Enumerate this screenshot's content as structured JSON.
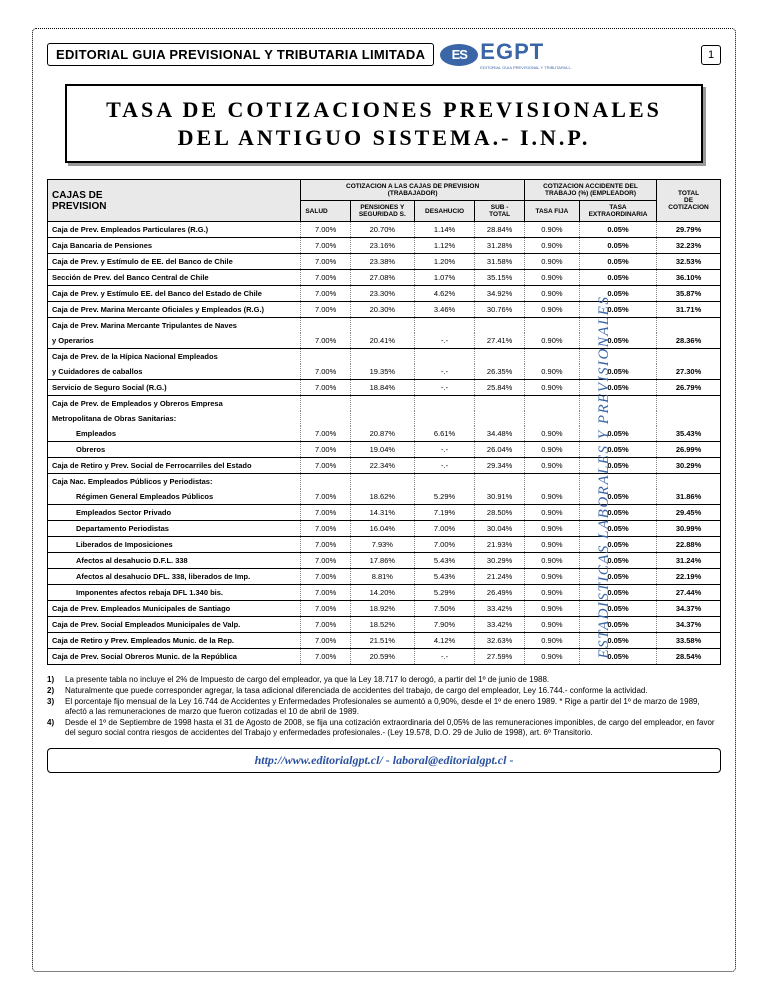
{
  "page_number": "1",
  "header_label": "EDITORIAL GUIA PREVISIONAL Y TRIBUTARIA LIMITADA",
  "logo_initials": "ES",
  "logo_text": "EGPT",
  "logo_sub": "EDITORIAL GUIA PREVISIONAL Y TRIBUTARIA L.",
  "title_line1": "TASA  DE  COTIZACIONES  PREVISIONALES",
  "title_line2": "DEL  ANTIGUO  SISTEMA.-  I.N.P.",
  "side_label": "ESTADISTICAS  LABORALES  Y  PREVISIONALES",
  "cols": {
    "c0a": "CAJAS  DE",
    "c0b": "PREVISION",
    "g1": "COTIZACION A LAS CAJAS DE PREVISION",
    "g1s": "(TRABAJADOR)",
    "g2": "COTIZACION ACCIDENTE DEL",
    "g2s": "TRABAJO (%) (EMPLEADOR)",
    "g3a": "TOTAL",
    "g3b": "DE",
    "g3c": "COTIZACION",
    "salud": "SALUD",
    "pens1": "PENSIONES Y",
    "pens2": "SEGURIDAD S.",
    "des": "DESAHUCIO",
    "sub1": "SUB -",
    "sub2": "TOTAL",
    "fija": "TASA FIJA",
    "ext1": "TASA",
    "ext2": "EXTRAORDINARIA"
  },
  "rows": [
    {
      "label": "Caja de Prev. Empleados Particulares (R.G.)",
      "salud": "7.00%",
      "pens": "20.70%",
      "des": "1.14%",
      "sub": "28.84%",
      "fija": "0.90%",
      "ext": "0.05%",
      "tot": "29.79%"
    },
    {
      "label": "Caja Bancaria de Pensiones",
      "salud": "7.00%",
      "pens": "23.16%",
      "des": "1.12%",
      "sub": "31.28%",
      "fija": "0.90%",
      "ext": "0.05%",
      "tot": "32.23%"
    },
    {
      "label": "Caja de Prev. y Estímulo de EE. del Banco de Chile",
      "salud": "7.00%",
      "pens": "23.38%",
      "des": "1.20%",
      "sub": "31.58%",
      "fija": "0.90%",
      "ext": "0.05%",
      "tot": "32.53%"
    },
    {
      "label": "Sección de Prev. del Banco Central de Chile",
      "salud": "7.00%",
      "pens": "27.08%",
      "des": "1.07%",
      "sub": "35.15%",
      "fija": "0.90%",
      "ext": "0.05%",
      "tot": "36.10%"
    },
    {
      "label": "Caja de Prev. y Estímulo EE. del Banco del Estado de Chile",
      "salud": "7.00%",
      "pens": "23.30%",
      "des": "4.62%",
      "sub": "34.92%",
      "fija": "0.90%",
      "ext": "0.05%",
      "tot": "35.87%"
    },
    {
      "label": "Caja de Prev. Marina Mercante Oficiales y Empleados (R.G.)",
      "salud": "7.00%",
      "pens": "20.30%",
      "des": "3.46%",
      "sub": "30.76%",
      "fija": "0.90%",
      "ext": "0.05%",
      "tot": "31.71%"
    },
    {
      "section": "Caja de Prev. Marina Mercante Tripulantes de Naves"
    },
    {
      "label": "y Operarios",
      "salud": "7.00%",
      "pens": "20.41%",
      "des": "-.-",
      "sub": "27.41%",
      "fija": "0.90%",
      "ext": "0.05%",
      "tot": "28.36%"
    },
    {
      "section": "Caja de Prev. de la Hípica Nacional Empleados"
    },
    {
      "label": "y Cuidadores de caballos",
      "salud": "7.00%",
      "pens": "19.35%",
      "des": "-.-",
      "sub": "26.35%",
      "fija": "0.90%",
      "ext": "0.05%",
      "tot": "27.30%"
    },
    {
      "label": "Servicio de Seguro Social (R.G.)",
      "salud": "7.00%",
      "pens": "18.84%",
      "des": "-.-",
      "sub": "25.84%",
      "fija": "0.90%",
      "ext": "0.05%",
      "tot": "26.79%"
    },
    {
      "section": "Caja de Prev. de Empleados y Obreros Empresa"
    },
    {
      "section": "Metropolitana de Obras Sanitarias:"
    },
    {
      "indent": true,
      "label": "Empleados",
      "salud": "7.00%",
      "pens": "20.87%",
      "des": "6.61%",
      "sub": "34.48%",
      "fija": "0.90%",
      "ext": "0.05%",
      "tot": "35.43%"
    },
    {
      "indent": true,
      "label": "Obreros",
      "salud": "7.00%",
      "pens": "19.04%",
      "des": "-.-",
      "sub": "26.04%",
      "fija": "0.90%",
      "ext": "0.05%",
      "tot": "26.99%"
    },
    {
      "label": "Caja de Retiro y Prev. Social de Ferrocarriles del Estado",
      "salud": "7.00%",
      "pens": "22.34%",
      "des": "-.-",
      "sub": "29.34%",
      "fija": "0.90%",
      "ext": "0.05%",
      "tot": "30.29%"
    },
    {
      "section": "Caja Nac. Empleados Públicos y Periodistas:"
    },
    {
      "indent": true,
      "label": "Régimen General Empleados Públicos",
      "salud": "7.00%",
      "pens": "18.62%",
      "des": "5.29%",
      "sub": "30.91%",
      "fija": "0.90%",
      "ext": "0.05%",
      "tot": "31.86%"
    },
    {
      "indent": true,
      "label": "Empleados Sector Privado",
      "salud": "7.00%",
      "pens": "14.31%",
      "des": "7.19%",
      "sub": "28.50%",
      "fija": "0.90%",
      "ext": "0.05%",
      "tot": "29.45%"
    },
    {
      "indent": true,
      "label": "Departamento Periodistas",
      "salud": "7.00%",
      "pens": "16.04%",
      "des": "7.00%",
      "sub": "30.04%",
      "fija": "0.90%",
      "ext": "0.05%",
      "tot": "30.99%"
    },
    {
      "indent": true,
      "label": "Liberados de Imposiciones",
      "salud": "7.00%",
      "pens": "7.93%",
      "des": "7.00%",
      "sub": "21.93%",
      "fija": "0.90%",
      "ext": "0.05%",
      "tot": "22.88%"
    },
    {
      "indent": true,
      "label": "Afectos al desahucio D.F.L. 338",
      "salud": "7.00%",
      "pens": "17.86%",
      "des": "5.43%",
      "sub": "30.29%",
      "fija": "0.90%",
      "ext": "0.05%",
      "tot": "31.24%"
    },
    {
      "indent": true,
      "label": "Afectos al desahucio DFL. 338, liberados de Imp.",
      "salud": "7.00%",
      "pens": "8.81%",
      "des": "5.43%",
      "sub": "21.24%",
      "fija": "0.90%",
      "ext": "0.05%",
      "tot": "22.19%"
    },
    {
      "indent": true,
      "label": "Imponentes afectos rebaja DFL 1.340 bis.",
      "salud": "7.00%",
      "pens": "14.20%",
      "des": "5.29%",
      "sub": "26.49%",
      "fija": "0.90%",
      "ext": "0.05%",
      "tot": "27.44%"
    },
    {
      "label": "Caja de Prev. Empleados Municipales de Santiago",
      "salud": "7.00%",
      "pens": "18.92%",
      "des": "7.50%",
      "sub": "33.42%",
      "fija": "0.90%",
      "ext": "0.05%",
      "tot": "34.37%"
    },
    {
      "label": "Caja de Prev. Social Empleados Municipales de Valp.",
      "salud": "7.00%",
      "pens": "18.52%",
      "des": "7.90%",
      "sub": "33.42%",
      "fija": "0.90%",
      "ext": "0.05%",
      "tot": "34.37%"
    },
    {
      "label": "Caja de Retiro y Prev. Empleados Munic. de la Rep.",
      "salud": "7.00%",
      "pens": "21.51%",
      "des": "4.12%",
      "sub": "32.63%",
      "fija": "0.90%",
      "ext": "0.05%",
      "tot": "33.58%"
    },
    {
      "label": "Caja de Prev. Social Obreros Munic. de la República",
      "salud": "7.00%",
      "pens": "20.59%",
      "des": "-.-",
      "sub": "27.59%",
      "fija": "0.90%",
      "ext": "0.05%",
      "tot": "28.54%"
    }
  ],
  "notes": [
    {
      "num": "1)",
      "txt": "La presente tabla no incluye el 2% de Impuesto de cargo del empleador, ya que la Ley 18.717 lo derogó, a partir del 1º de junio de 1988."
    },
    {
      "num": "2)",
      "txt": "Naturalmente que puede corresponder agregar, la tasa adicional diferenciada de accidentes del trabajo, de cargo del empleador, Ley 16.744.- conforme la actividad."
    },
    {
      "num": "3)",
      "txt": "El porcentaje fijo mensual de la Ley 16.744 de Accidentes y Enfermedades Profesionales se aumentó a 0,90%, desde el 1º de enero 1989. * Rige a partir del 1º de marzo de 1989, afectó a las remuneraciones de marzo que fueron cotizadas el 10 de abril de 1989."
    },
    {
      "num": "4)",
      "txt": "Desde el 1º de Septiembre de 1998 hasta el 31 de Agosto de 2008, se fija una cotización extraordinaria del 0,05% de las remuneraciones imponibles, de cargo del empleador, en favor del seguro social contra riesgos de accidentes del Trabajo y enfermedades profesionales.- (Ley 19.578, D.O. 29 de Julio de 1998), art. 6º Transitorio."
    }
  ],
  "footer": "http://www.editorialgpt.cl/    -    laboral@editorialgpt.cl    -"
}
